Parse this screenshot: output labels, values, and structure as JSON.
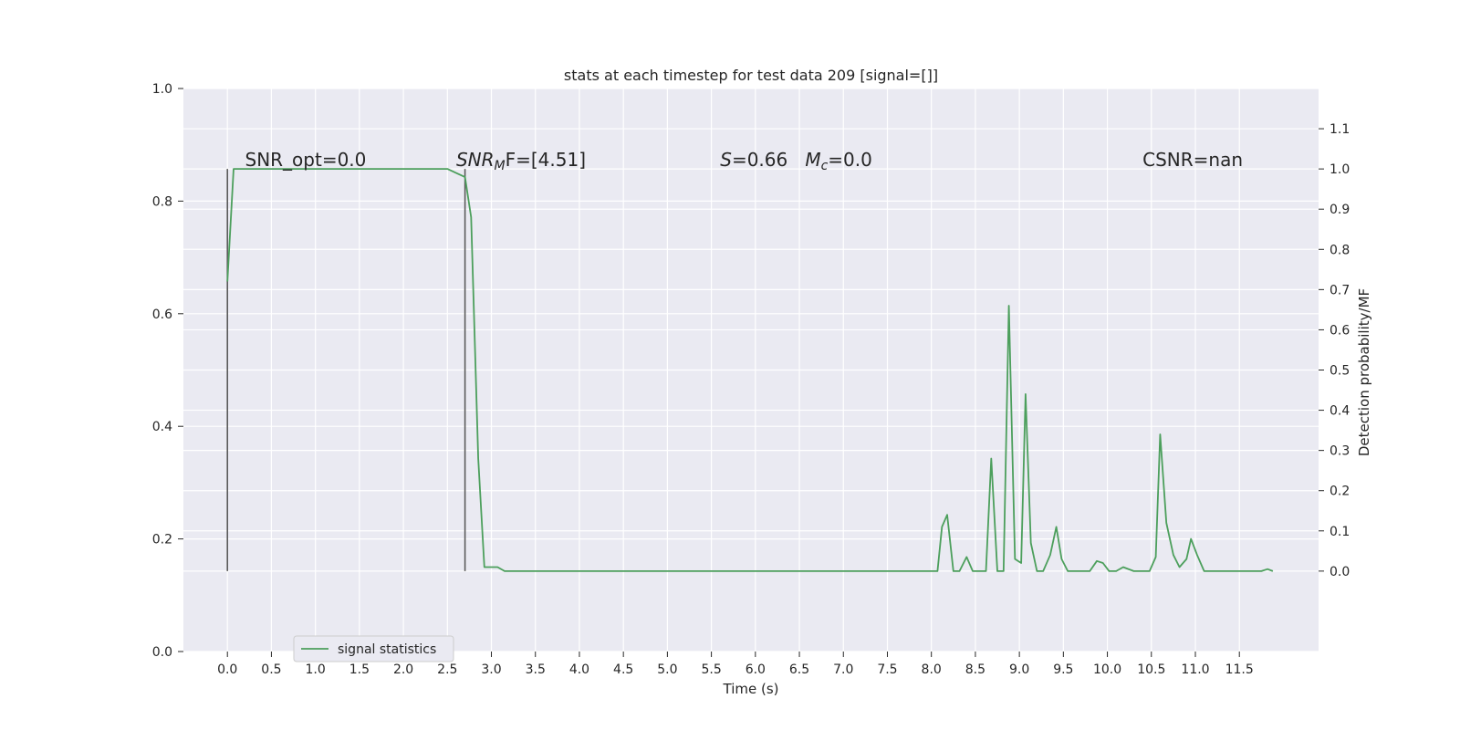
{
  "chart_data": {
    "type": "line",
    "title": "stats at each timestep for test data 209 [signal=[]]",
    "xlabel": "Time (s)",
    "ylabel_left": "",
    "ylabel_right": "Detection probability/MF",
    "xlim": [
      -0.5,
      12.4
    ],
    "ylim_left": [
      0.0,
      1.0
    ],
    "ylim_right": [
      -0.2,
      1.2
    ],
    "x_ticks": [
      0.0,
      0.5,
      1.0,
      1.5,
      2.0,
      2.5,
      3.0,
      3.5,
      4.0,
      4.5,
      5.0,
      5.5,
      6.0,
      6.5,
      7.0,
      7.5,
      8.0,
      8.5,
      9.0,
      9.5,
      10.0,
      10.5,
      11.0,
      11.5
    ],
    "x_tick_labels": [
      "0.0",
      "0.5",
      "1.0",
      "1.5",
      "2.0",
      "2.5",
      "3.0",
      "3.5",
      "4.0",
      "4.5",
      "5.0",
      "5.5",
      "6.0",
      "6.5",
      "7.0",
      "7.5",
      "8.0",
      "8.5",
      "9.0",
      "9.5",
      "10.0",
      "10.5",
      "11.0",
      "11.5"
    ],
    "y_left_ticks": [
      0.0,
      0.2,
      0.4,
      0.6,
      0.8,
      1.0
    ],
    "y_left_tick_labels": [
      "0.0",
      "0.2",
      "0.4",
      "0.6",
      "0.8",
      "1.0"
    ],
    "y_right_ticks": [
      0.0,
      0.1,
      0.2,
      0.3,
      0.4,
      0.5,
      0.6,
      0.7,
      0.8,
      0.9,
      1.0,
      1.1
    ],
    "y_right_tick_labels": [
      "0.0",
      "0.1",
      "0.2",
      "0.3",
      "0.4",
      "0.5",
      "0.6",
      "0.7",
      "0.8",
      "0.9",
      "1.0",
      "1.1"
    ],
    "grid": true,
    "legend_position": "lower-left",
    "colors": {
      "series": "#4c9f5c",
      "vlines": "#5a5a5a",
      "plot_bg": "#eaeaf2",
      "grid": "#ffffff"
    },
    "vertical_lines": [
      {
        "x": 0.0,
        "y_range": [
          0.0,
          1.0
        ]
      },
      {
        "x": 2.7,
        "y_range": [
          0.0,
          1.0
        ]
      }
    ],
    "annotations": [
      {
        "text": "SNR_opt=0.0",
        "x": 0.2,
        "y": 1.0
      },
      {
        "text": "SNR_MF=[4.51]",
        "x": 2.6,
        "y": 1.0
      },
      {
        "text": "S=0.66   M_c=0.0",
        "x": 5.6,
        "y": 1.0
      },
      {
        "text": "CSNR=nan",
        "x": 10.4,
        "y": 1.0
      }
    ],
    "series": [
      {
        "name": "signal statistics",
        "axis": "right",
        "x": [
          0.0,
          0.07,
          0.15,
          0.25,
          0.5,
          1.0,
          1.5,
          2.0,
          2.5,
          2.6,
          2.7,
          2.77,
          2.85,
          2.92,
          3.0,
          3.07,
          3.15,
          3.25,
          3.5,
          4.0,
          5.0,
          6.0,
          7.0,
          8.0,
          8.07,
          8.12,
          8.18,
          8.25,
          8.32,
          8.4,
          8.47,
          8.55,
          8.62,
          8.68,
          8.75,
          8.82,
          8.88,
          8.95,
          9.02,
          9.07,
          9.13,
          9.2,
          9.27,
          9.35,
          9.42,
          9.48,
          9.55,
          9.62,
          9.7,
          9.8,
          9.88,
          9.95,
          10.02,
          10.1,
          10.18,
          10.3,
          10.4,
          10.48,
          10.55,
          10.6,
          10.67,
          10.75,
          10.82,
          10.9,
          10.95,
          11.02,
          11.1,
          11.2,
          11.3,
          11.5,
          11.75,
          11.82,
          11.88
        ],
        "y": [
          0.72,
          1.0,
          1.0,
          1.0,
          1.0,
          1.0,
          1.0,
          1.0,
          1.0,
          0.99,
          0.98,
          0.88,
          0.28,
          0.01,
          0.01,
          0.01,
          0.0,
          0.0,
          0.0,
          0.0,
          0.0,
          0.0,
          0.0,
          0.0,
          0.0,
          0.11,
          0.14,
          0.0,
          0.0,
          0.035,
          0.0,
          0.0,
          0.0,
          0.28,
          0.0,
          0.0,
          0.66,
          0.03,
          0.02,
          0.44,
          0.07,
          0.0,
          0.0,
          0.04,
          0.11,
          0.03,
          0.0,
          0.0,
          0.0,
          0.0,
          0.025,
          0.02,
          0.0,
          0.0,
          0.01,
          0.0,
          0.0,
          0.0,
          0.035,
          0.34,
          0.12,
          0.04,
          0.01,
          0.03,
          0.08,
          0.04,
          0.0,
          0.0,
          0.0,
          0.0,
          0.0,
          0.005,
          0.0
        ]
      }
    ]
  }
}
